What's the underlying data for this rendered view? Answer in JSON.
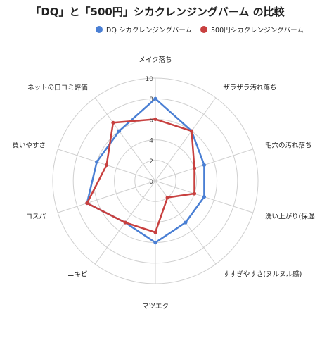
{
  "chart_data": {
    "type": "radar",
    "title": "「DQ」と「500円」シカクレンジングバーム の比較",
    "categories": [
      "メイク落ち",
      "ザラザラ汚れ落ち",
      "毛穴の汚れ落ち",
      "洗い上がり(保湿感)",
      "すすぎやすさ(ヌルヌル感)",
      "マツエク",
      "ニキビ",
      "コスパ",
      "買いやすさ",
      "ネットの口コミ評価"
    ],
    "ticks": [
      0,
      2,
      4,
      6,
      8,
      10
    ],
    "rlim": [
      0,
      10
    ],
    "grid": true,
    "legend_position": "top-right",
    "series": [
      {
        "name": "DQ シカクレンジングバーム",
        "color": "#4a7fd4",
        "values": [
          8,
          6,
          5,
          5,
          5,
          6,
          5,
          7,
          6,
          6
        ]
      },
      {
        "name": "500円シカクレンジングバーム",
        "color": "#c8403f",
        "values": [
          6,
          6,
          4,
          4,
          2,
          5,
          5,
          7,
          5,
          7
        ]
      }
    ]
  }
}
